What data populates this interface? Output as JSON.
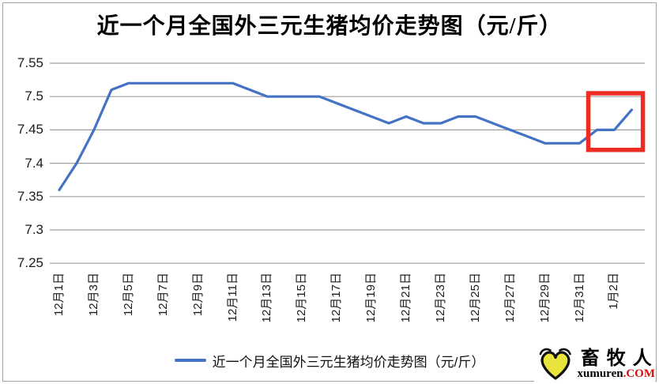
{
  "page": {
    "background": "#ffffff",
    "frame_border_color": "#a3a3a3"
  },
  "chart_data": {
    "type": "line",
    "title": "近一个月全国外三元生猪均价走势图（元/斤）",
    "xlabel": "",
    "ylabel": "",
    "categories": [
      "12月1日",
      "12月2日",
      "12月3日",
      "12月4日",
      "12月5日",
      "12月6日",
      "12月7日",
      "12月8日",
      "12月9日",
      "12月10日",
      "12月11日",
      "12月12日",
      "12月13日",
      "12月14日",
      "12月15日",
      "12月16日",
      "12月17日",
      "12月18日",
      "12月19日",
      "12月20日",
      "12月21日",
      "12月22日",
      "12月23日",
      "12月24日",
      "12月25日",
      "12月26日",
      "12月27日",
      "12月28日",
      "12月29日",
      "12月30日",
      "12月31日",
      "1月1日",
      "1月2日",
      "1月3日"
    ],
    "values": [
      7.36,
      7.4,
      7.45,
      7.51,
      7.52,
      7.52,
      7.52,
      7.52,
      7.52,
      7.52,
      7.52,
      7.51,
      7.5,
      7.5,
      7.5,
      7.5,
      7.49,
      7.48,
      7.47,
      7.46,
      7.47,
      7.46,
      7.46,
      7.47,
      7.47,
      7.46,
      7.45,
      7.44,
      7.43,
      7.43,
      7.43,
      7.45,
      7.45,
      7.48
    ],
    "x_tick_interval": 2,
    "x_tick_labels_visible": [
      "12月1日",
      "12月3日",
      "12月5日",
      "12月7日",
      "12月9日",
      "12月11日",
      "12月13日",
      "12月15日",
      "12月17日",
      "12月19日",
      "12月21日",
      "12月23日",
      "12月25日",
      "12月27日",
      "12月29日",
      "12月31日",
      "1月2日"
    ],
    "ylim": [
      7.25,
      7.55
    ],
    "y_tick_step": 0.05,
    "y_tick_labels": [
      "7.55",
      "7.5",
      "7.45",
      "7.4",
      "7.35",
      "7.3",
      "7.25"
    ],
    "grid": true,
    "legend_position": "bottom",
    "legend": [
      "近一个月全国外三元生猪均价走势图（元/斤）"
    ],
    "line_color": "#4472c4",
    "gridline_color": "#9d9d9d",
    "annotation": {
      "type": "rect",
      "color": "#ee2b23",
      "x_index_range": [
        30.5,
        33.65
      ],
      "value_range": [
        7.42,
        7.505
      ]
    }
  },
  "logo": {
    "brand_cn": "畜牧人",
    "brand_en_black": "xumuren",
    "brand_en_red": ".COM",
    "red_color": "#d40e0e",
    "heart_color": "#e9e43b"
  }
}
